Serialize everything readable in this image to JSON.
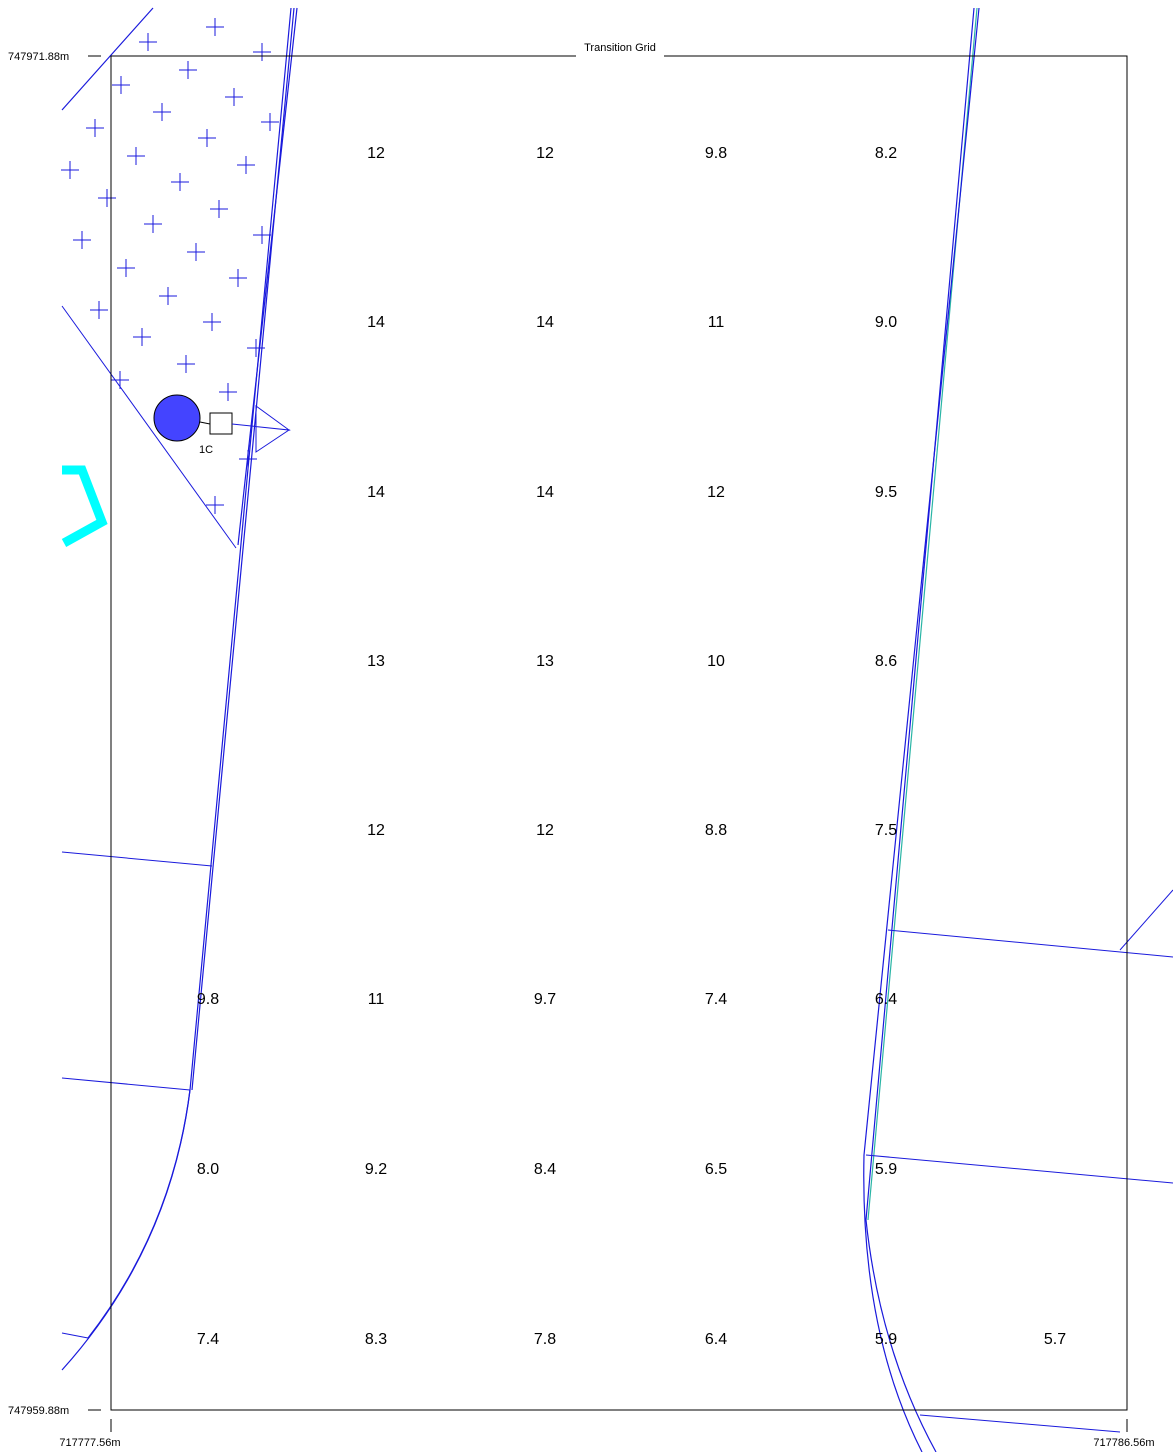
{
  "map": {
    "title": "Transition Grid",
    "extent": {
      "top_northing": "747971.88m",
      "bottom_northing": "747959.88m",
      "left_easting": "717777.56m",
      "right_easting": "717786.56m"
    },
    "source_label": "1C",
    "grid_values": [
      [
        "",
        "12",
        "12",
        "9.8",
        "8.2",
        ""
      ],
      [
        "",
        "14",
        "14",
        "11",
        "9.0",
        ""
      ],
      [
        "",
        "14",
        "14",
        "12",
        "9.5",
        ""
      ],
      [
        "",
        "13",
        "13",
        "10",
        "8.6",
        ""
      ],
      [
        "",
        "12",
        "12",
        "8.8",
        "7.5",
        ""
      ],
      [
        "9.8",
        "11",
        "9.7",
        "7.4",
        "6.4",
        ""
      ],
      [
        "8.0",
        "9.2",
        "8.4",
        "6.5",
        "5.9",
        ""
      ],
      [
        "7.4",
        "8.3",
        "7.8",
        "6.4",
        "5.9",
        "5.7"
      ]
    ],
    "colors": {
      "features": "#1a1adc",
      "source": "#4444ff",
      "highlight": "#00ffff",
      "frame": "#000000",
      "accent_line": "#2ab5a5"
    }
  }
}
